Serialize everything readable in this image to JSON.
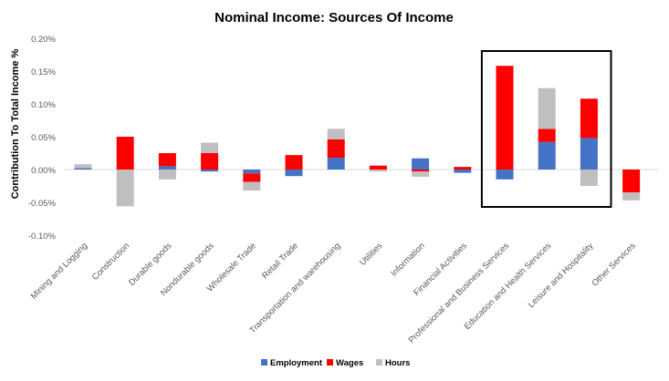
{
  "chart_data": {
    "type": "bar",
    "stacked": true,
    "title": "Nominal Income: Sources Of Income",
    "xlabel": "",
    "ylabel": "Contribution To Total Income %",
    "ylim": [
      -0.1,
      0.2
    ],
    "yticks": [
      -0.1,
      -0.05,
      0.0,
      0.05,
      0.1,
      0.15,
      0.2
    ],
    "ytick_labels": [
      "-0.10%",
      "-0.05%",
      "0.00%",
      "0.05%",
      "0.10%",
      "0.15%",
      "0.20%"
    ],
    "grid": false,
    "legend_position": "bottom",
    "categories": [
      "Mining and Logging",
      "Construction",
      "Durable goods",
      "Nondurable goods",
      "Wholesale Trade",
      "Retail Trade",
      "Transportation and warehousing",
      "Utilities",
      "Information",
      "Financial Activities",
      "Professional and Business Services",
      "Education and Health Services",
      "Leisure and Hospitality",
      "Other Services"
    ],
    "series": [
      {
        "name": "Employment",
        "color": "#4472C4",
        "values": [
          0.002,
          0.0,
          0.005,
          -0.003,
          -0.006,
          -0.01,
          0.018,
          0.0,
          0.017,
          -0.005,
          -0.015,
          0.042,
          0.048,
          0.0
        ]
      },
      {
        "name": "Wages",
        "color": "#FF0000",
        "values": [
          0.0,
          0.05,
          0.02,
          0.025,
          -0.013,
          0.022,
          0.028,
          0.006,
          -0.003,
          0.004,
          0.158,
          0.02,
          0.06,
          -0.035
        ]
      },
      {
        "name": "Hours",
        "color": "#BFBFBF",
        "values": [
          0.006,
          -0.056,
          -0.015,
          0.016,
          -0.013,
          0.0,
          0.016,
          -0.003,
          -0.008,
          0.0,
          0.0,
          0.062,
          -0.025,
          -0.012
        ]
      }
    ],
    "highlighted_categories": [
      "Professional and Business Services",
      "Education and Health Services",
      "Leisure and Hospitality"
    ]
  }
}
